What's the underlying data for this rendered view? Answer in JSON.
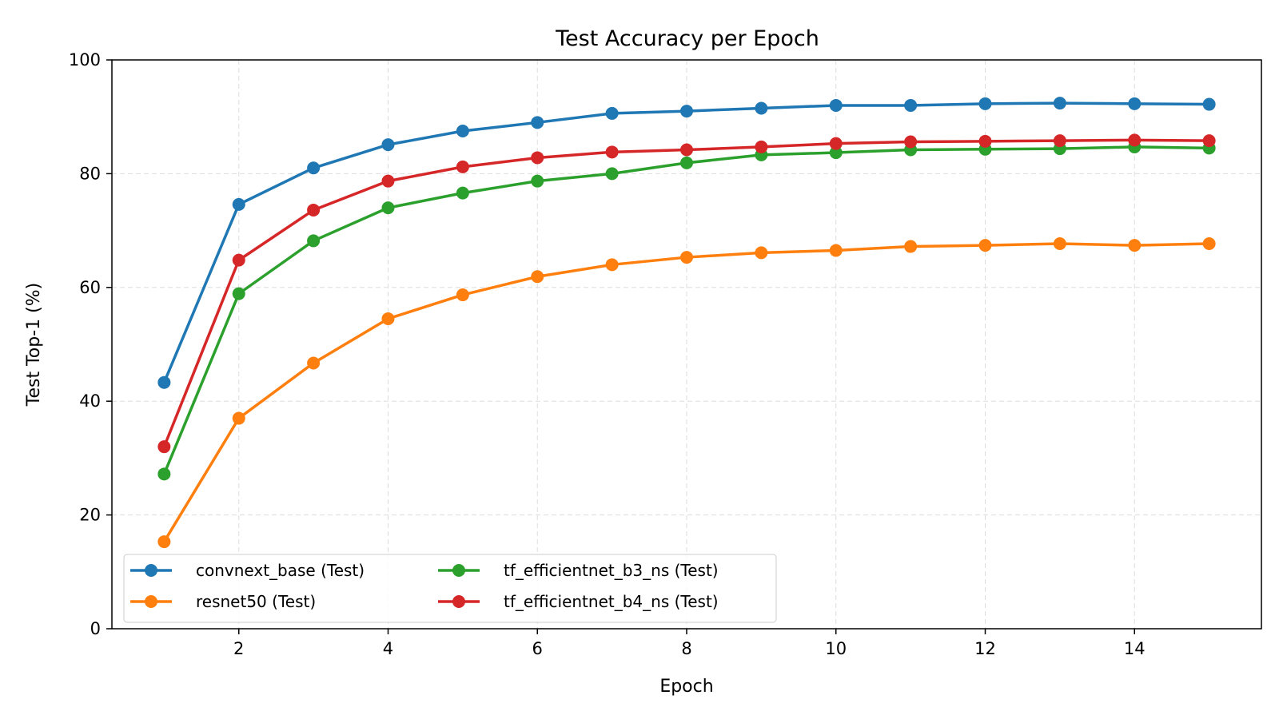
{
  "chart_data": {
    "type": "line",
    "title": "Test Accuracy per Epoch",
    "xlabel": "Epoch",
    "ylabel": "Test Top-1 (%)",
    "xlim": [
      0.3,
      15.7
    ],
    "ylim": [
      0,
      100
    ],
    "xticks": [
      2,
      4,
      6,
      8,
      10,
      12,
      14
    ],
    "yticks": [
      0,
      20,
      40,
      60,
      80,
      100
    ],
    "grid": true,
    "legend_position": "lower-left",
    "legend_columns": 2,
    "x": [
      1,
      2,
      3,
      4,
      5,
      6,
      7,
      8,
      9,
      10,
      11,
      12,
      13,
      14,
      15
    ],
    "series": [
      {
        "name": "convnext_base (Test)",
        "color": "#1f77b4",
        "values": [
          43.3,
          74.6,
          81.0,
          85.1,
          87.5,
          89.0,
          90.6,
          91.0,
          91.5,
          92.0,
          92.0,
          92.3,
          92.4,
          92.3,
          92.2
        ]
      },
      {
        "name": "resnet50 (Test)",
        "color": "#ff7f0e",
        "values": [
          15.3,
          37.0,
          46.7,
          54.5,
          58.7,
          61.9,
          64.0,
          65.3,
          66.1,
          66.5,
          67.2,
          67.4,
          67.7,
          67.4,
          67.7
        ]
      },
      {
        "name": "tf_efficientnet_b3_ns (Test)",
        "color": "#2ca02c",
        "values": [
          27.2,
          58.9,
          68.2,
          74.0,
          76.6,
          78.7,
          80.0,
          81.9,
          83.3,
          83.7,
          84.2,
          84.3,
          84.4,
          84.7,
          84.5
        ]
      },
      {
        "name": "tf_efficientnet_b4_ns (Test)",
        "color": "#d62728",
        "values": [
          32.0,
          64.8,
          73.6,
          78.7,
          81.2,
          82.8,
          83.8,
          84.2,
          84.7,
          85.3,
          85.6,
          85.7,
          85.8,
          85.9,
          85.8
        ]
      }
    ]
  }
}
